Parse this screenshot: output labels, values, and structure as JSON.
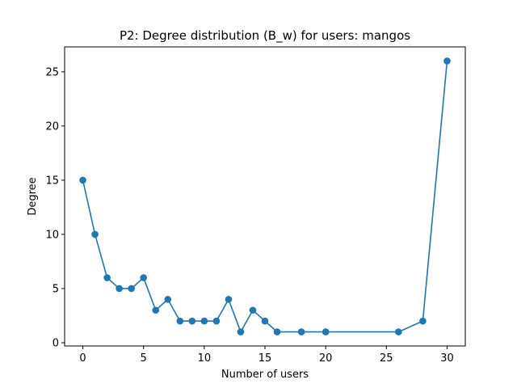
{
  "chart_data": {
    "type": "line",
    "title": "P2: Degree distribution (B_w) for users: mangos",
    "xlabel": "Number of users",
    "ylabel": "Degree",
    "xlim": [
      -1.5,
      31.5
    ],
    "ylim": [
      -0.3,
      27.3
    ],
    "xticks": [
      0,
      5,
      10,
      15,
      20,
      25,
      30
    ],
    "yticks": [
      0,
      5,
      10,
      15,
      20,
      25
    ],
    "grid": false,
    "marker": "circle",
    "color": "#1f77b4",
    "series": [
      {
        "x": [
          0,
          1,
          2,
          3,
          4,
          5,
          6,
          7,
          8,
          9,
          10,
          11,
          12,
          13,
          14,
          15,
          16,
          18,
          20,
          26,
          28,
          30
        ],
        "y": [
          15,
          10,
          6,
          5,
          5,
          6,
          3,
          4,
          2,
          2,
          2,
          2,
          4,
          1,
          3,
          2,
          1,
          1,
          1,
          1,
          2,
          26
        ]
      }
    ]
  }
}
